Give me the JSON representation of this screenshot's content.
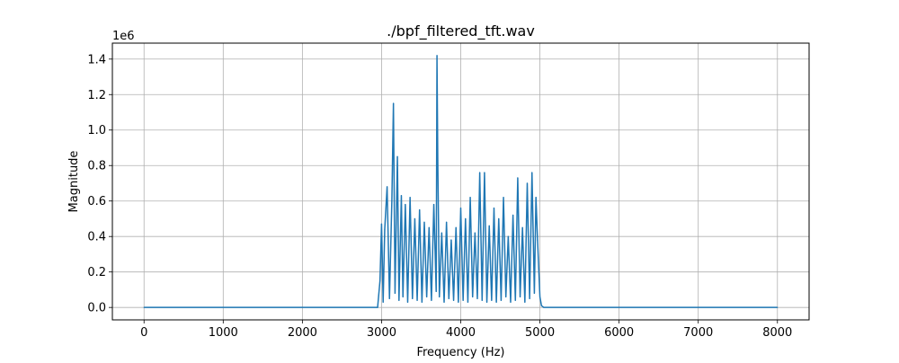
{
  "chart_data": {
    "type": "line",
    "title": "./bpf_filtered_tft.wav",
    "xlabel": "Frequency (Hz)",
    "ylabel": "Magnitude",
    "y_offset_label": "1e6",
    "xlim": [
      -400,
      8400
    ],
    "ylim": [
      -70000,
      1490000
    ],
    "x_ticks": [
      0,
      1000,
      2000,
      3000,
      4000,
      5000,
      6000,
      7000,
      8000
    ],
    "x_tick_labels": [
      "0",
      "1000",
      "2000",
      "3000",
      "4000",
      "5000",
      "6000",
      "7000",
      "8000"
    ],
    "y_ticks": [
      0,
      200000,
      400000,
      600000,
      800000,
      1000000,
      1200000,
      1400000
    ],
    "y_tick_labels": [
      "0.0",
      "0.2",
      "0.4",
      "0.6",
      "0.8",
      "1.0",
      "1.2",
      "1.4"
    ],
    "grid": true,
    "line_color": "#1f77b4",
    "series": [
      {
        "x": [
          0,
          2950,
          2980,
          3000,
          3020,
          3040,
          3070,
          3100,
          3130,
          3150,
          3170,
          3200,
          3220,
          3250,
          3270,
          3300,
          3330,
          3360,
          3390,
          3420,
          3450,
          3480,
          3510,
          3540,
          3570,
          3600,
          3630,
          3660,
          3690,
          3700,
          3710,
          3730,
          3760,
          3790,
          3820,
          3850,
          3880,
          3910,
          3940,
          3970,
          4000,
          4030,
          4060,
          4090,
          4120,
          4150,
          4180,
          4210,
          4240,
          4270,
          4300,
          4330,
          4360,
          4390,
          4420,
          4450,
          4480,
          4510,
          4540,
          4570,
          4600,
          4630,
          4660,
          4690,
          4720,
          4750,
          4780,
          4810,
          4840,
          4870,
          4900,
          4930,
          4950,
          4970,
          5000,
          5020,
          5050,
          8000
        ],
        "y": [
          0,
          0,
          150000,
          470000,
          30000,
          440000,
          680000,
          50000,
          600000,
          1150000,
          80000,
          850000,
          40000,
          630000,
          60000,
          580000,
          30000,
          620000,
          50000,
          500000,
          40000,
          550000,
          30000,
          480000,
          60000,
          450000,
          40000,
          580000,
          90000,
          1420000,
          830000,
          60000,
          420000,
          30000,
          480000,
          50000,
          380000,
          40000,
          450000,
          30000,
          560000,
          40000,
          500000,
          30000,
          620000,
          60000,
          420000,
          50000,
          760000,
          40000,
          760000,
          30000,
          460000,
          40000,
          560000,
          30000,
          500000,
          40000,
          620000,
          60000,
          400000,
          30000,
          520000,
          40000,
          730000,
          60000,
          450000,
          30000,
          700000,
          50000,
          760000,
          80000,
          620000,
          380000,
          60000,
          10000,
          0,
          0
        ]
      }
    ]
  }
}
